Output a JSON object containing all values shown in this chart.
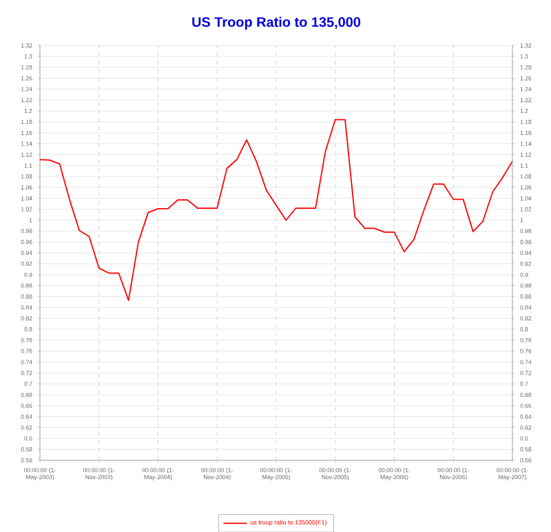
{
  "chart_data": {
    "type": "line",
    "title": "US Troop Ratio to 135,000",
    "x": [
      "2003-05",
      "2003-06",
      "2003-07",
      "2003-08",
      "2003-09",
      "2003-10",
      "2003-11",
      "2003-12",
      "2004-01",
      "2004-02",
      "2004-03",
      "2004-04",
      "2004-05",
      "2004-06",
      "2004-07",
      "2004-08",
      "2004-09",
      "2004-10",
      "2004-11",
      "2004-12",
      "2005-01",
      "2005-02",
      "2005-03",
      "2005-04",
      "2005-05",
      "2005-06",
      "2005-07",
      "2005-08",
      "2005-09",
      "2005-10",
      "2005-11",
      "2005-12",
      "2006-01",
      "2006-02",
      "2006-03",
      "2006-04",
      "2006-05",
      "2006-06",
      "2006-07",
      "2006-08",
      "2006-09",
      "2006-10",
      "2006-11",
      "2006-12",
      "2007-01",
      "2007-02",
      "2007-03",
      "2007-04",
      "2007-05"
    ],
    "series": [
      {
        "name": "us troop ratio to 135000(F1)",
        "color": "#ff0000",
        "values": [
          1.111,
          1.11,
          1.103,
          1.038,
          0.981,
          0.97,
          0.912,
          0.903,
          0.903,
          0.853,
          0.96,
          1.014,
          1.021,
          1.021,
          1.037,
          1.037,
          1.022,
          1.022,
          1.022,
          1.095,
          1.111,
          1.147,
          1.107,
          1.055,
          1.027,
          1.0,
          1.022,
          1.022,
          1.022,
          1.126,
          1.184,
          1.184,
          1.006,
          0.985,
          0.985,
          0.978,
          0.978,
          0.942,
          0.965,
          1.018,
          1.066,
          1.066,
          1.038,
          1.038,
          0.979,
          0.998,
          1.052,
          1.078,
          1.108
        ]
      }
    ],
    "xlim": [
      "2003-05-01",
      "2007-05-01"
    ],
    "xticks": [
      {
        "value": "2003-05-01",
        "label": "00:00:00 (1-May-2003)"
      },
      {
        "value": "2003-11-01",
        "label": "00:00:00 (1-Nov-2003)"
      },
      {
        "value": "2004-05-01",
        "label": "00:00:00 (1-May-2004)"
      },
      {
        "value": "2004-11-01",
        "label": "00:00:00 (1-Nov-2004)"
      },
      {
        "value": "2005-05-01",
        "label": "00:00:00 (1-May-2005)"
      },
      {
        "value": "2005-11-01",
        "label": "00:00:00 (1-Nov-2005)"
      },
      {
        "value": "2006-05-01",
        "label": "00:00:00 (1-May-2006)"
      },
      {
        "value": "2006-11-01",
        "label": "00:00:00 (1-Nov-2006)"
      },
      {
        "value": "2007-05-01",
        "label": "00:00:00 (1-May-2007)"
      }
    ],
    "ylim": [
      0.56,
      1.32
    ],
    "yticks": [
      0.56,
      0.58,
      0.6,
      0.62,
      0.64,
      0.66,
      0.68,
      0.7,
      0.72,
      0.74,
      0.76,
      0.78,
      0.8,
      0.82,
      0.84,
      0.86,
      0.88,
      0.9,
      0.92,
      0.94,
      0.96,
      0.98,
      1,
      1.02,
      1.04,
      1.06,
      1.08,
      1.1,
      1.12,
      1.14,
      1.16,
      1.18,
      1.2,
      1.22,
      1.24,
      1.26,
      1.28,
      1.3,
      1.32
    ],
    "y2lim": [
      0.56,
      1.32
    ],
    "y2ticks": [
      0.56,
      0.58,
      0.6,
      0.62,
      0.64,
      0.66,
      0.68,
      0.7,
      0.72,
      0.74,
      0.76,
      0.78,
      0.8,
      0.82,
      0.84,
      0.86,
      0.88,
      0.9,
      0.92,
      0.94,
      0.96,
      0.98,
      1,
      1.02,
      1.04,
      1.06,
      1.08,
      1.1,
      1.12,
      1.14,
      1.16,
      1.18,
      1.2,
      1.22,
      1.24,
      1.26,
      1.28,
      1.3,
      1.32
    ],
    "grid": true,
    "legend": "bottom",
    "marker": "none",
    "line_style": "solid"
  }
}
